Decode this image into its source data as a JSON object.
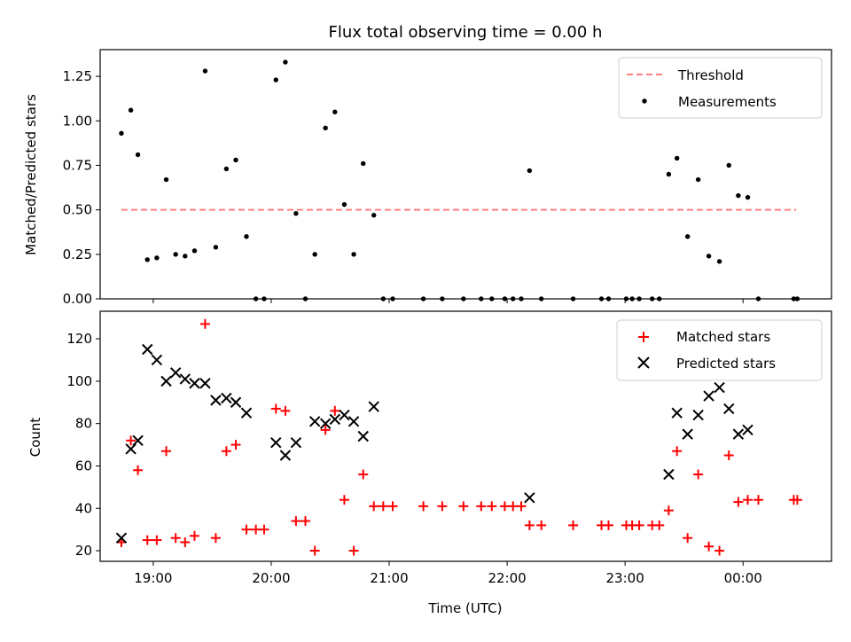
{
  "title": "Flux total observing time = 0.00 h",
  "colors": {
    "threshold": "#ff8080",
    "measurement": "#000000",
    "matched": "#ff0000",
    "predicted": "#000000",
    "frame": "#000000",
    "legend_border": "#cccccc"
  },
  "chart_data": [
    {
      "type": "scatter",
      "ylabel": "Matched/Predicted stars",
      "ylim": [
        0,
        1.4
      ],
      "yticks": [
        0.0,
        0.25,
        0.5,
        0.75,
        1.0,
        1.25
      ],
      "ytick_labels": [
        "0.00",
        "0.25",
        "0.50",
        "0.75",
        "1.00",
        "1.25"
      ],
      "xlim": [
        18.55,
        24.75
      ],
      "xticks": [
        19,
        20,
        21,
        22,
        23,
        24
      ],
      "legend": {
        "position": "top-right",
        "entries": [
          "Threshold",
          "Measurements"
        ]
      },
      "threshold": {
        "name": "Threshold",
        "value": 0.5,
        "x_range": [
          18.73,
          24.45
        ],
        "style": "dashed"
      },
      "series": [
        {
          "name": "Measurements",
          "marker": "dot",
          "x": [
            18.73,
            18.81,
            18.87,
            18.95,
            19.03,
            19.11,
            19.19,
            19.27,
            19.35,
            19.44,
            19.53,
            19.62,
            19.7,
            19.79,
            19.87,
            19.94,
            20.04,
            20.12,
            20.21,
            20.29,
            20.37,
            20.46,
            20.54,
            20.62,
            20.7,
            20.78,
            20.87,
            20.95,
            21.03,
            21.29,
            21.45,
            21.63,
            21.78,
            21.87,
            21.98,
            22.05,
            22.12,
            22.19,
            22.29,
            22.56,
            22.8,
            22.86,
            23.01,
            23.06,
            23.12,
            23.23,
            23.29,
            23.37,
            23.44,
            23.53,
            23.62,
            23.71,
            23.8,
            23.88,
            23.96,
            24.04,
            24.13,
            24.43,
            24.46
          ],
          "y": [
            0.93,
            1.06,
            0.81,
            0.22,
            0.23,
            0.67,
            0.25,
            0.24,
            0.27,
            1.28,
            0.29,
            0.73,
            0.78,
            0.35,
            0.0,
            0.0,
            1.23,
            1.33,
            0.48,
            0.0,
            0.25,
            0.96,
            1.05,
            0.53,
            0.25,
            0.76,
            0.47,
            0.0,
            0.0,
            0.0,
            0.0,
            0.0,
            0.0,
            0.0,
            0.0,
            0.0,
            0.0,
            0.72,
            0.0,
            0.0,
            0.0,
            0.0,
            0.0,
            0.0,
            0.0,
            0.0,
            0.0,
            0.7,
            0.79,
            0.35,
            0.67,
            0.24,
            0.21,
            0.75,
            0.58,
            0.57,
            0.0,
            0.0,
            0.0
          ]
        }
      ]
    },
    {
      "type": "scatter",
      "ylabel": "Count",
      "xlabel": "Time (UTC)",
      "ylim": [
        15,
        133
      ],
      "yticks": [
        20,
        40,
        60,
        80,
        100,
        120
      ],
      "ytick_labels": [
        "20",
        "40",
        "60",
        "80",
        "100",
        "120"
      ],
      "xlim": [
        18.55,
        24.75
      ],
      "xticks": [
        19,
        20,
        21,
        22,
        23,
        24
      ],
      "xtick_labels": [
        "19:00",
        "20:00",
        "21:00",
        "22:00",
        "23:00",
        "00:00"
      ],
      "legend": {
        "position": "top-right",
        "entries": [
          "Matched stars",
          "Predicted stars"
        ]
      },
      "series": [
        {
          "name": "Matched stars",
          "marker": "plus",
          "x": [
            18.73,
            18.81,
            18.87,
            18.95,
            19.03,
            19.11,
            19.19,
            19.27,
            19.35,
            19.44,
            19.53,
            19.62,
            19.7,
            19.79,
            19.87,
            19.94,
            20.04,
            20.12,
            20.21,
            20.29,
            20.37,
            20.46,
            20.54,
            20.62,
            20.7,
            20.78,
            20.87,
            20.95,
            21.03,
            21.29,
            21.45,
            21.63,
            21.78,
            21.87,
            21.98,
            22.05,
            22.12,
            22.19,
            22.29,
            22.56,
            22.8,
            22.86,
            23.01,
            23.06,
            23.12,
            23.23,
            23.29,
            23.37,
            23.44,
            23.53,
            23.62,
            23.71,
            23.8,
            23.88,
            23.96,
            24.04,
            24.13,
            24.43,
            24.46
          ],
          "y": [
            24,
            72,
            58,
            25,
            25,
            67,
            26,
            24,
            27,
            127,
            26,
            67,
            70,
            30,
            30,
            30,
            87,
            86,
            34,
            34,
            20,
            77,
            86,
            44,
            20,
            56,
            41,
            41,
            41,
            41,
            41,
            41,
            41,
            41,
            41,
            41,
            41,
            32,
            32,
            32,
            32,
            32,
            32,
            32,
            32,
            32,
            32,
            39,
            67,
            26,
            56,
            22,
            20,
            65,
            43,
            44,
            44,
            44,
            44
          ]
        },
        {
          "name": "Predicted stars",
          "marker": "x",
          "x": [
            18.73,
            18.81,
            18.87,
            18.95,
            19.03,
            19.11,
            19.19,
            19.27,
            19.35,
            19.44,
            19.53,
            19.62,
            19.7,
            19.79,
            20.04,
            20.12,
            20.21,
            20.37,
            20.46,
            20.54,
            20.62,
            20.7,
            20.78,
            20.87,
            22.19,
            23.37,
            23.44,
            23.53,
            23.62,
            23.71,
            23.8,
            23.88,
            23.96,
            24.04
          ],
          "y": [
            26,
            68,
            72,
            115,
            110,
            100,
            104,
            101,
            99,
            99,
            91,
            92,
            90,
            85,
            71,
            65,
            71,
            81,
            80,
            82,
            84,
            81,
            74,
            88,
            45,
            56,
            85,
            75,
            84,
            93,
            97,
            87,
            75,
            77
          ]
        }
      ]
    }
  ]
}
